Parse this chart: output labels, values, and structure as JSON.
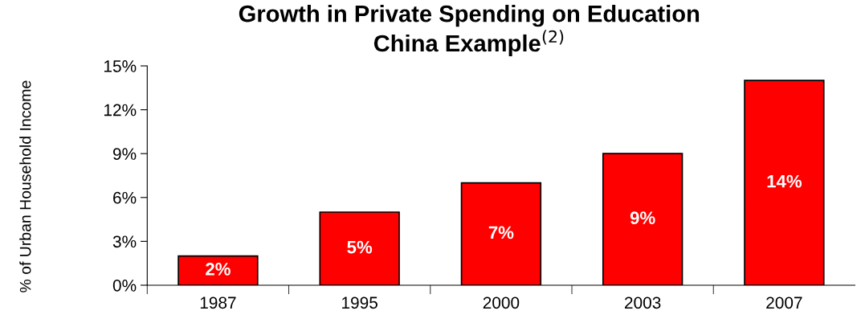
{
  "chart_data": {
    "type": "bar",
    "title": "Growth in Private Spending on Education\nChina Example$^{(2)}$",
    "ylabel": "% of Urban Household Income",
    "categories": [
      "1987",
      "1995",
      "2000",
      "2003",
      "2007"
    ],
    "values": [
      2,
      5,
      7,
      9,
      14
    ],
    "value_labels": [
      "2%",
      "5%",
      "7%",
      "9%",
      "14%"
    ],
    "color": "#ff0000",
    "ylim": [
      0,
      15
    ],
    "yticks": [
      {
        "value": 0,
        "label": "0%"
      },
      {
        "value": 3,
        "label": "3%"
      },
      {
        "value": 6,
        "label": "6%"
      },
      {
        "value": 9,
        "label": "9%"
      },
      {
        "value": 12,
        "label": "12%"
      },
      {
        "value": 15,
        "label": "15%"
      }
    ],
    "grid": false,
    "legend": false
  }
}
